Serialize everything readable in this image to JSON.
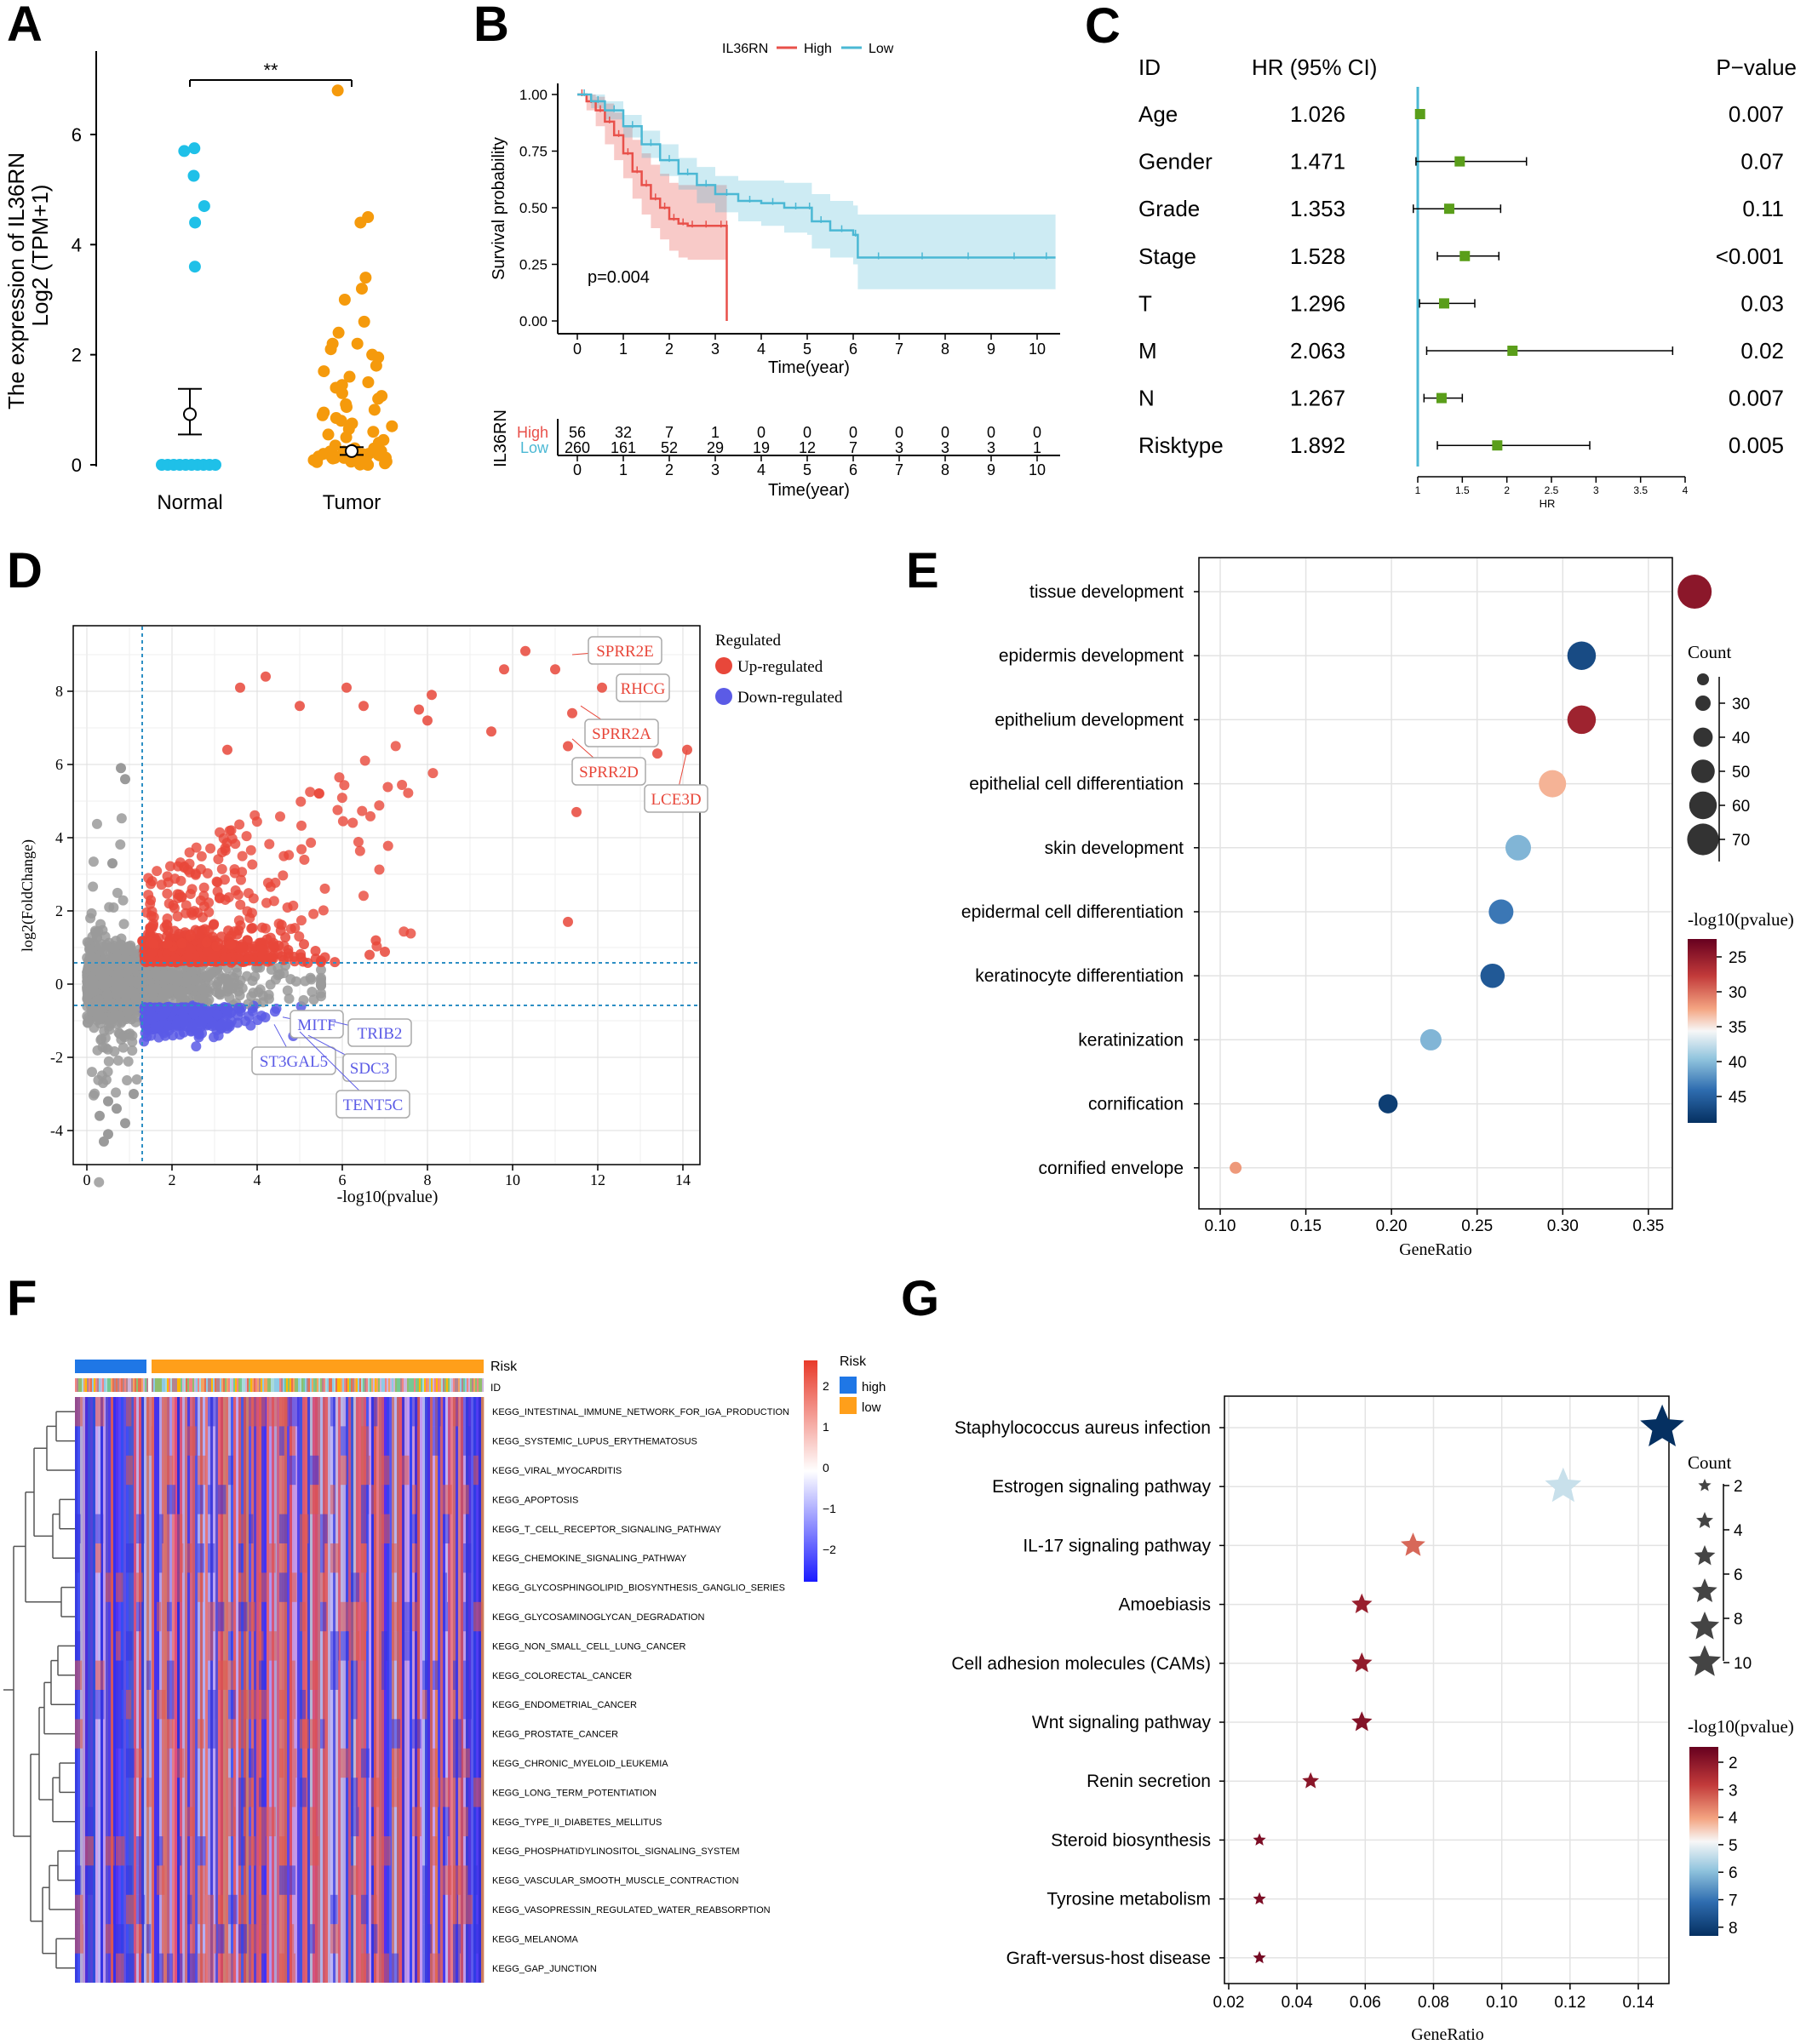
{
  "panels": {
    "A": "A",
    "B": "B",
    "C": "C",
    "D": "D",
    "E": "E",
    "F": "F",
    "G": "G"
  },
  "chart_data": [
    {
      "panel": "A",
      "type": "scatter",
      "ylabel_line1": "The expression of IL36RN",
      "ylabel_line2": "Log2 (TPM+1)",
      "categories": [
        "Normal",
        "Tumor"
      ],
      "yticks": [
        0,
        2,
        4,
        6
      ],
      "ylim": [
        -0.2,
        7.1
      ],
      "significance": "**",
      "normal_points": [
        5.75,
        5.7,
        5.25,
        4.7,
        4.4,
        3.6,
        0,
        0,
        0,
        0,
        0,
        0,
        0,
        0,
        0,
        0
      ],
      "normal_mean": 0.92,
      "normal_err": [
        0.55,
        1.28
      ],
      "tumor_points": [
        6.8,
        4.5,
        4.4,
        3.4,
        3.2,
        3.0,
        2.6,
        2.4,
        2.2,
        2.2,
        2.1,
        2.0,
        1.95,
        1.8,
        1.7,
        1.6,
        1.5,
        1.45,
        1.4,
        1.3,
        1.25,
        1.2,
        1.1,
        1.05,
        1.0,
        0.95,
        0.9,
        0.85,
        0.8,
        0.75,
        0.7,
        0.65,
        0.6,
        0.55,
        0.5,
        0.45,
        0.4,
        0.35,
        0.3,
        0.25,
        0.2,
        0.15,
        0.1,
        0.05,
        0
      ],
      "tumor_mean": 0.25,
      "tumor_err": [
        0.18,
        0.32
      ]
    },
    {
      "panel": "B",
      "type": "line",
      "legend_title": "IL36RN",
      "series": [
        {
          "name": "High",
          "color": "#e8504a",
          "x": [
            0,
            0.2,
            0.4,
            0.6,
            0.8,
            1.0,
            1.2,
            1.4,
            1.6,
            1.8,
            2.0,
            2.2,
            2.4,
            2.6,
            3.0,
            3.25,
            3.25
          ],
          "y": [
            1.0,
            0.97,
            0.93,
            0.88,
            0.82,
            0.74,
            0.66,
            0.6,
            0.54,
            0.5,
            0.45,
            0.43,
            0.42,
            0.42,
            0.42,
            0.42,
            0.0
          ],
          "ci_upper": [
            1.0,
            1.0,
            0.99,
            0.96,
            0.92,
            0.86,
            0.8,
            0.74,
            0.69,
            0.65,
            0.61,
            0.6,
            0.6,
            0.6,
            0.6,
            0.6,
            0.6
          ],
          "ci_lower": [
            1.0,
            0.93,
            0.86,
            0.78,
            0.71,
            0.63,
            0.54,
            0.47,
            0.41,
            0.36,
            0.31,
            0.28,
            0.27,
            0.27,
            0.27,
            0.27,
            0.27
          ]
        },
        {
          "name": "Low",
          "color": "#4bb8d4",
          "x": [
            0,
            0.3,
            0.6,
            1.0,
            1.4,
            1.8,
            2.2,
            2.6,
            3.0,
            3.5,
            4.0,
            4.5,
            5.0,
            5.1,
            5.5,
            6.0,
            6.1,
            7.0,
            8.0,
            9.0,
            10.0,
            10.4
          ],
          "y": [
            1.0,
            0.97,
            0.93,
            0.86,
            0.78,
            0.71,
            0.65,
            0.6,
            0.56,
            0.53,
            0.52,
            0.5,
            0.5,
            0.44,
            0.4,
            0.38,
            0.28,
            0.28,
            0.28,
            0.28,
            0.28,
            0.28
          ],
          "ci_upper": [
            1.0,
            1.0,
            0.97,
            0.91,
            0.84,
            0.78,
            0.72,
            0.68,
            0.64,
            0.62,
            0.62,
            0.61,
            0.61,
            0.56,
            0.53,
            0.51,
            0.47,
            0.47,
            0.47,
            0.47,
            0.47,
            0.47
          ],
          "ci_lower": [
            1.0,
            0.94,
            0.89,
            0.81,
            0.72,
            0.64,
            0.58,
            0.52,
            0.48,
            0.44,
            0.42,
            0.39,
            0.38,
            0.32,
            0.28,
            0.25,
            0.14,
            0.14,
            0.14,
            0.14,
            0.14,
            0.14
          ]
        }
      ],
      "xlabel": "Time(year)",
      "ylabel": "Survival probability",
      "xticks": [
        0,
        1,
        2,
        3,
        4,
        5,
        6,
        7,
        8,
        9,
        10
      ],
      "yticks": [
        "0.00",
        "0.25",
        "0.50",
        "0.75",
        "1.00"
      ],
      "pvalue_text": "p=0.004",
      "risk_table": {
        "ylabel": "IL36RN",
        "rows": [
          {
            "name": "High",
            "color": "#e8504a",
            "values": [
              "56",
              "32",
              "7",
              "1",
              "0",
              "0",
              "0",
              "0",
              "0",
              "0",
              "0"
            ]
          },
          {
            "name": "Low",
            "color": "#4bb8d4",
            "values": [
              "260",
              "161",
              "52",
              "29",
              "19",
              "12",
              "7",
              "3",
              "3",
              "3",
              "1"
            ]
          }
        ],
        "xlabel": "Time(year)"
      }
    },
    {
      "panel": "C",
      "type": "forest",
      "header_id": "ID",
      "header_hr": "HR (95% CI)",
      "header_p": "P−value",
      "rows": [
        {
          "id": "Age",
          "hr_text": "1.026",
          "p": "0.007",
          "hr": 1.026,
          "lo": 1.0,
          "hi": 1.05
        },
        {
          "id": "Gender",
          "hr_text": "1.471",
          "p": "0.07",
          "hr": 1.471,
          "lo": 0.98,
          "hi": 2.22
        },
        {
          "id": "Grade",
          "hr_text": "1.353",
          "p": "0.11",
          "hr": 1.353,
          "lo": 0.95,
          "hi": 1.93
        },
        {
          "id": "Stage",
          "hr_text": "1.528",
          "p": "<0.001",
          "hr": 1.528,
          "lo": 1.22,
          "hi": 1.91
        },
        {
          "id": "T",
          "hr_text": "1.296",
          "p": "0.03",
          "hr": 1.296,
          "lo": 1.02,
          "hi": 1.64
        },
        {
          "id": "M",
          "hr_text": "2.063",
          "p": "0.02",
          "hr": 2.063,
          "lo": 1.1,
          "hi": 3.86
        },
        {
          "id": "N",
          "hr_text": "1.267",
          "p": "0.007",
          "hr": 1.267,
          "lo": 1.07,
          "hi": 1.5
        },
        {
          "id": "Risktype",
          "hr_text": "1.892",
          "p": "0.005",
          "hr": 1.892,
          "lo": 1.22,
          "hi": 2.93
        }
      ],
      "xticks": [
        "1",
        "1.5",
        "2",
        "2.5",
        "3",
        "3.5",
        "4"
      ],
      "xlabel": "HR",
      "marker_color": "#5a9e1a",
      "ref_line_color": "#4bb8d4"
    },
    {
      "panel": "D",
      "type": "scatter",
      "xlabel": "-log10(pvalue)",
      "ylabel": "log2(FoldChange)",
      "xticks": [
        0,
        2,
        4,
        6,
        8,
        10,
        12,
        14
      ],
      "yticks": [
        -4,
        -2,
        0,
        2,
        4,
        6,
        8
      ],
      "xlim": [
        -0.5,
        14.4
      ],
      "ylim": [
        -4.5,
        9.6
      ],
      "thresholds": {
        "x": 1.3,
        "y_up": 0.58,
        "y_down": -0.58
      },
      "legend_title": "Regulated",
      "legend": [
        {
          "name": "Up-regulated",
          "color": "#e8473a"
        },
        {
          "name": "Down-regulated",
          "color": "#5b5be6"
        }
      ],
      "labels_up": [
        {
          "text": "SPRR2E",
          "x": 11.4,
          "y": 9.0
        },
        {
          "text": "RHCG",
          "x": 12.5,
          "y": 8.3
        },
        {
          "text": "SPRR2A",
          "x": 11.6,
          "y": 7.6
        },
        {
          "text": "SPRR2D",
          "x": 11.4,
          "y": 6.7
        },
        {
          "text": "LCE3D",
          "x": 14.1,
          "y": 6.4
        }
      ],
      "labels_down": [
        {
          "text": "MITF",
          "x": 4.6,
          "y": -0.9
        },
        {
          "text": "TRIB2",
          "x": 5.7,
          "y": -1.0
        },
        {
          "text": "ST3GAL5",
          "x": 4.4,
          "y": -1.1
        },
        {
          "text": "SDC3",
          "x": 5.2,
          "y": -1.4
        },
        {
          "text": "TENT5C",
          "x": 5.0,
          "y": -1.3
        }
      ],
      "highlight_points": [
        [
          10.3,
          9.1
        ],
        [
          11.0,
          8.6
        ],
        [
          9.8,
          8.6
        ],
        [
          12.1,
          8.1
        ],
        [
          11.4,
          7.4
        ],
        [
          11.3,
          6.5
        ],
        [
          14.1,
          6.4
        ],
        [
          13.4,
          6.3
        ],
        [
          11.5,
          4.7
        ],
        [
          11.3,
          1.7
        ],
        [
          4.2,
          8.4
        ],
        [
          3.6,
          8.1
        ],
        [
          6.1,
          8.1
        ],
        [
          8.1,
          7.9
        ],
        [
          7.8,
          7.5
        ],
        [
          6.5,
          7.6
        ],
        [
          5.0,
          7.6
        ],
        [
          3.3,
          6.4
        ],
        [
          8.0,
          7.2
        ],
        [
          9.5,
          6.9
        ]
      ]
    },
    {
      "panel": "E",
      "type": "scatter",
      "terms": [
        "tissue development",
        "epidermis development",
        "epithelium development",
        "epithelial cell differentiation",
        "skin development",
        "epidermal cell differentiation",
        "keratinocyte differentiation",
        "keratinization",
        "cornification",
        "cornified envelope"
      ],
      "gene_ratio": [
        0.377,
        0.311,
        0.311,
        0.294,
        0.274,
        0.264,
        0.259,
        0.223,
        0.198,
        0.109
      ],
      "count": [
        72,
        59,
        59,
        56,
        52,
        50,
        49,
        42,
        37,
        20
      ],
      "neglog10p": [
        25,
        46,
        26,
        33,
        40,
        43,
        45,
        40,
        47,
        32
      ],
      "xticks": [
        "0.10",
        "0.15",
        "0.20",
        "0.25",
        "0.30",
        "0.35"
      ],
      "xlabel": "GeneRatio",
      "size_legend_title": "Count",
      "size_legend": [
        "30",
        "40",
        "50",
        "60",
        "70"
      ],
      "color_legend_title": "-log10(pvalue)",
      "color_legend": [
        "25",
        "30",
        "35",
        "40",
        "45"
      ]
    },
    {
      "panel": "F",
      "type": "heatmap",
      "annotation_labels": [
        "Risk",
        "ID"
      ],
      "legend_title": "Risk",
      "legend": [
        {
          "name": "high",
          "color": "#1f77e6"
        },
        {
          "name": "low",
          "color": "#ff9f1a"
        }
      ],
      "scale": [
        "2",
        "1",
        "0",
        "−1",
        "−2"
      ],
      "pathways": [
        "KEGG_INTESTINAL_IMMUNE_NETWORK_FOR_IGA_PRODUCTION",
        "KEGG_SYSTEMIC_LUPUS_ERYTHEMATOSUS",
        "KEGG_VIRAL_MYOCARDITIS",
        "KEGG_APOPTOSIS",
        "KEGG_T_CELL_RECEPTOR_SIGNALING_PATHWAY",
        "KEGG_CHEMOKINE_SIGNALING_PATHWAY",
        "KEGG_GLYCOSPHINGOLIPID_BIOSYNTHESIS_GANGLIO_SERIES",
        "KEGG_GLYCOSAMINOGLYCAN_DEGRADATION",
        "KEGG_NON_SMALL_CELL_LUNG_CANCER",
        "KEGG_COLORECTAL_CANCER",
        "KEGG_ENDOMETRIAL_CANCER",
        "KEGG_PROSTATE_CANCER",
        "KEGG_CHRONIC_MYELOID_LEUKEMIA",
        "KEGG_LONG_TERM_POTENTIATION",
        "KEGG_TYPE_II_DIABETES_MELLITUS",
        "KEGG_PHOSPHATIDYLINOSITOL_SIGNALING_SYSTEM",
        "KEGG_VASCULAR_SMOOTH_MUSCLE_CONTRACTION",
        "KEGG_VASOPRESSIN_REGULATED_WATER_REABSORPTION",
        "KEGG_MELANOMA",
        "KEGG_GAP_JUNCTION"
      ]
    },
    {
      "panel": "G",
      "type": "scatter",
      "terms": [
        "Staphylococcus aureus infection",
        "Estrogen signaling pathway",
        "IL-17 signaling pathway",
        "Amoebiasis",
        "Cell adhesion molecules (CAMs)",
        "Wnt signaling pathway",
        "Renin secretion",
        "Steroid biosynthesis",
        "Tyrosine metabolism",
        "Graft-versus-host disease"
      ],
      "gene_ratio": [
        0.147,
        0.118,
        0.074,
        0.059,
        0.059,
        0.059,
        0.044,
        0.029,
        0.029,
        0.029
      ],
      "count": [
        10,
        8,
        5,
        4,
        4,
        4,
        3,
        2,
        2,
        2
      ],
      "neglog10p": [
        8,
        5.2,
        3.3,
        2.2,
        2.1,
        1.9,
        2.0,
        1.8,
        1.8,
        1.7
      ],
      "xticks": [
        "0.02",
        "0.04",
        "0.06",
        "0.08",
        "0.10",
        "0.12",
        "0.14"
      ],
      "xlabel": "GeneRatio",
      "size_legend_title": "Count",
      "size_legend": [
        "2",
        "4",
        "6",
        "8",
        "10"
      ],
      "color_legend_title": "-log10(pvalue)",
      "color_legend": [
        "2",
        "3",
        "4",
        "5",
        "6",
        "7",
        "8"
      ]
    }
  ]
}
